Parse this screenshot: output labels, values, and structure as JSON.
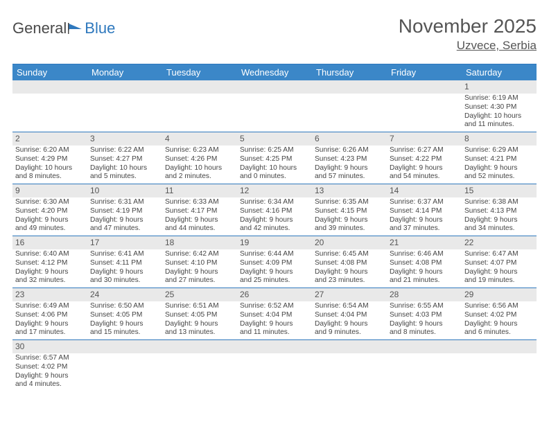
{
  "logo": {
    "part1": "General",
    "part2": "Blue"
  },
  "title": "November 2025",
  "location": "Uzvece, Serbia",
  "colors": {
    "header_bg": "#3b87c8",
    "border": "#2e78bd",
    "daynum_bg": "#e9e9e9",
    "text": "#444444",
    "title_text": "#555555"
  },
  "day_labels": [
    "Sunday",
    "Monday",
    "Tuesday",
    "Wednesday",
    "Thursday",
    "Friday",
    "Saturday"
  ],
  "weeks": [
    [
      null,
      null,
      null,
      null,
      null,
      null,
      {
        "n": "1",
        "sr": "Sunrise: 6:19 AM",
        "ss": "Sunset: 4:30 PM",
        "d1": "Daylight: 10 hours",
        "d2": "and 11 minutes."
      }
    ],
    [
      {
        "n": "2",
        "sr": "Sunrise: 6:20 AM",
        "ss": "Sunset: 4:29 PM",
        "d1": "Daylight: 10 hours",
        "d2": "and 8 minutes."
      },
      {
        "n": "3",
        "sr": "Sunrise: 6:22 AM",
        "ss": "Sunset: 4:27 PM",
        "d1": "Daylight: 10 hours",
        "d2": "and 5 minutes."
      },
      {
        "n": "4",
        "sr": "Sunrise: 6:23 AM",
        "ss": "Sunset: 4:26 PM",
        "d1": "Daylight: 10 hours",
        "d2": "and 2 minutes."
      },
      {
        "n": "5",
        "sr": "Sunrise: 6:25 AM",
        "ss": "Sunset: 4:25 PM",
        "d1": "Daylight: 10 hours",
        "d2": "and 0 minutes."
      },
      {
        "n": "6",
        "sr": "Sunrise: 6:26 AM",
        "ss": "Sunset: 4:23 PM",
        "d1": "Daylight: 9 hours",
        "d2": "and 57 minutes."
      },
      {
        "n": "7",
        "sr": "Sunrise: 6:27 AM",
        "ss": "Sunset: 4:22 PM",
        "d1": "Daylight: 9 hours",
        "d2": "and 54 minutes."
      },
      {
        "n": "8",
        "sr": "Sunrise: 6:29 AM",
        "ss": "Sunset: 4:21 PM",
        "d1": "Daylight: 9 hours",
        "d2": "and 52 minutes."
      }
    ],
    [
      {
        "n": "9",
        "sr": "Sunrise: 6:30 AM",
        "ss": "Sunset: 4:20 PM",
        "d1": "Daylight: 9 hours",
        "d2": "and 49 minutes."
      },
      {
        "n": "10",
        "sr": "Sunrise: 6:31 AM",
        "ss": "Sunset: 4:19 PM",
        "d1": "Daylight: 9 hours",
        "d2": "and 47 minutes."
      },
      {
        "n": "11",
        "sr": "Sunrise: 6:33 AM",
        "ss": "Sunset: 4:17 PM",
        "d1": "Daylight: 9 hours",
        "d2": "and 44 minutes."
      },
      {
        "n": "12",
        "sr": "Sunrise: 6:34 AM",
        "ss": "Sunset: 4:16 PM",
        "d1": "Daylight: 9 hours",
        "d2": "and 42 minutes."
      },
      {
        "n": "13",
        "sr": "Sunrise: 6:35 AM",
        "ss": "Sunset: 4:15 PM",
        "d1": "Daylight: 9 hours",
        "d2": "and 39 minutes."
      },
      {
        "n": "14",
        "sr": "Sunrise: 6:37 AM",
        "ss": "Sunset: 4:14 PM",
        "d1": "Daylight: 9 hours",
        "d2": "and 37 minutes."
      },
      {
        "n": "15",
        "sr": "Sunrise: 6:38 AM",
        "ss": "Sunset: 4:13 PM",
        "d1": "Daylight: 9 hours",
        "d2": "and 34 minutes."
      }
    ],
    [
      {
        "n": "16",
        "sr": "Sunrise: 6:40 AM",
        "ss": "Sunset: 4:12 PM",
        "d1": "Daylight: 9 hours",
        "d2": "and 32 minutes."
      },
      {
        "n": "17",
        "sr": "Sunrise: 6:41 AM",
        "ss": "Sunset: 4:11 PM",
        "d1": "Daylight: 9 hours",
        "d2": "and 30 minutes."
      },
      {
        "n": "18",
        "sr": "Sunrise: 6:42 AM",
        "ss": "Sunset: 4:10 PM",
        "d1": "Daylight: 9 hours",
        "d2": "and 27 minutes."
      },
      {
        "n": "19",
        "sr": "Sunrise: 6:44 AM",
        "ss": "Sunset: 4:09 PM",
        "d1": "Daylight: 9 hours",
        "d2": "and 25 minutes."
      },
      {
        "n": "20",
        "sr": "Sunrise: 6:45 AM",
        "ss": "Sunset: 4:08 PM",
        "d1": "Daylight: 9 hours",
        "d2": "and 23 minutes."
      },
      {
        "n": "21",
        "sr": "Sunrise: 6:46 AM",
        "ss": "Sunset: 4:08 PM",
        "d1": "Daylight: 9 hours",
        "d2": "and 21 minutes."
      },
      {
        "n": "22",
        "sr": "Sunrise: 6:47 AM",
        "ss": "Sunset: 4:07 PM",
        "d1": "Daylight: 9 hours",
        "d2": "and 19 minutes."
      }
    ],
    [
      {
        "n": "23",
        "sr": "Sunrise: 6:49 AM",
        "ss": "Sunset: 4:06 PM",
        "d1": "Daylight: 9 hours",
        "d2": "and 17 minutes."
      },
      {
        "n": "24",
        "sr": "Sunrise: 6:50 AM",
        "ss": "Sunset: 4:05 PM",
        "d1": "Daylight: 9 hours",
        "d2": "and 15 minutes."
      },
      {
        "n": "25",
        "sr": "Sunrise: 6:51 AM",
        "ss": "Sunset: 4:05 PM",
        "d1": "Daylight: 9 hours",
        "d2": "and 13 minutes."
      },
      {
        "n": "26",
        "sr": "Sunrise: 6:52 AM",
        "ss": "Sunset: 4:04 PM",
        "d1": "Daylight: 9 hours",
        "d2": "and 11 minutes."
      },
      {
        "n": "27",
        "sr": "Sunrise: 6:54 AM",
        "ss": "Sunset: 4:04 PM",
        "d1": "Daylight: 9 hours",
        "d2": "and 9 minutes."
      },
      {
        "n": "28",
        "sr": "Sunrise: 6:55 AM",
        "ss": "Sunset: 4:03 PM",
        "d1": "Daylight: 9 hours",
        "d2": "and 8 minutes."
      },
      {
        "n": "29",
        "sr": "Sunrise: 6:56 AM",
        "ss": "Sunset: 4:02 PM",
        "d1": "Daylight: 9 hours",
        "d2": "and 6 minutes."
      }
    ],
    [
      {
        "n": "30",
        "sr": "Sunrise: 6:57 AM",
        "ss": "Sunset: 4:02 PM",
        "d1": "Daylight: 9 hours",
        "d2": "and 4 minutes."
      },
      null,
      null,
      null,
      null,
      null,
      null
    ]
  ]
}
